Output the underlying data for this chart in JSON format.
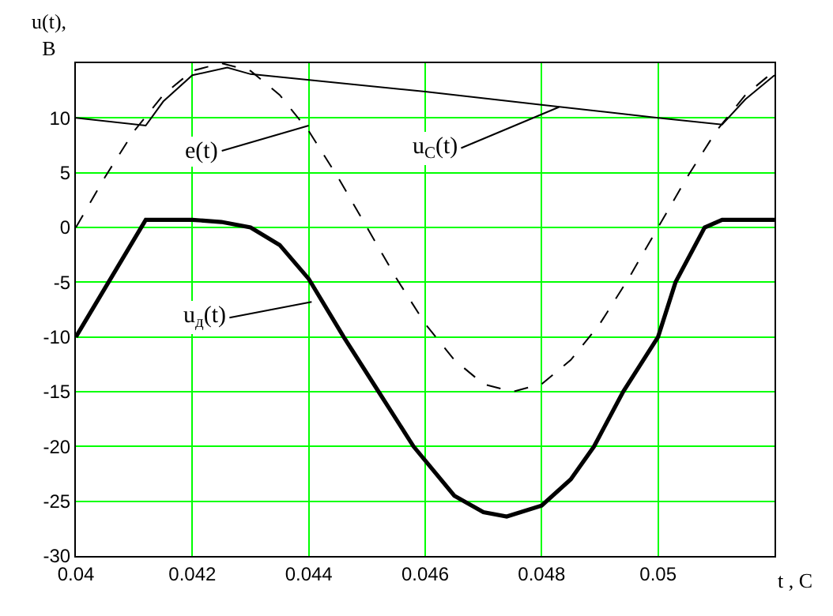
{
  "chart_data": {
    "type": "line",
    "xlabel": "t , С",
    "ylabel": "u(t),\nВ",
    "xlim": [
      0.04,
      0.052
    ],
    "ylim": [
      -30,
      15
    ],
    "xticks": [
      0.04,
      0.042,
      0.044,
      0.046,
      0.048,
      0.05
    ],
    "yticks": [
      -30,
      -25,
      -20,
      -15,
      -10,
      -5,
      0,
      5,
      10
    ],
    "grid": true,
    "marker": "none",
    "series": [
      {
        "color": "#000000",
        "line_style": "dashed",
        "x": [
          0.04,
          0.0405,
          0.041,
          0.0415,
          0.042,
          0.0425,
          0.043,
          0.0435,
          0.044,
          0.0445,
          0.045,
          0.0455,
          0.046,
          0.0465,
          0.047,
          0.0475,
          0.048,
          0.0485,
          0.049,
          0.0495,
          0.05,
          0.0505,
          0.051,
          0.0515,
          0.052
        ],
        "values": [
          0,
          4.6,
          8.8,
          12.1,
          14.3,
          15,
          14.3,
          12.1,
          8.8,
          4.6,
          0,
          -4.6,
          -8.8,
          -12.1,
          -14.3,
          -15,
          -14.3,
          -12.1,
          -8.8,
          -4.6,
          0,
          4.6,
          8.8,
          12.1,
          14.3
        ]
      },
      {
        "color": "#000000",
        "line_style": "solid",
        "x": [
          0.04,
          0.0412,
          0.0415,
          0.042,
          0.0426,
          0.043,
          0.046,
          0.048,
          0.05,
          0.0511,
          0.0515,
          0.052
        ],
        "values": [
          10,
          9.3,
          11.5,
          13.9,
          14.6,
          14.0,
          12.4,
          11.2,
          10,
          9.4,
          11.7,
          13.9
        ]
      },
      {
        "color": "#000000",
        "line_style": "solid",
        "x": [
          0.04,
          0.0412,
          0.042,
          0.0425,
          0.043,
          0.0435,
          0.044,
          0.0446,
          0.0452,
          0.0458,
          0.0465,
          0.047,
          0.0474,
          0.048,
          0.0485,
          0.0489,
          0.0494,
          0.05,
          0.0503,
          0.0508,
          0.0511,
          0.052
        ],
        "values": [
          -10,
          0.7,
          0.7,
          0.5,
          0,
          -1.6,
          -4.7,
          -10,
          -15,
          -20,
          -24.5,
          -26,
          -26.4,
          -25.4,
          -23,
          -20,
          -15,
          -10,
          -5,
          0,
          0.7,
          0.7
        ]
      }
    ],
    "annotations": [
      {
        "text": "e(t)",
        "x": 0.044,
        "y": 9.3
      },
      {
        "text": "u$_{C}$(t)",
        "x": 0.0483,
        "y": 11.0
      },
      {
        "text": "u$_{д}$(t)",
        "x": 0.04405,
        "y": -6.8
      }
    ]
  }
}
